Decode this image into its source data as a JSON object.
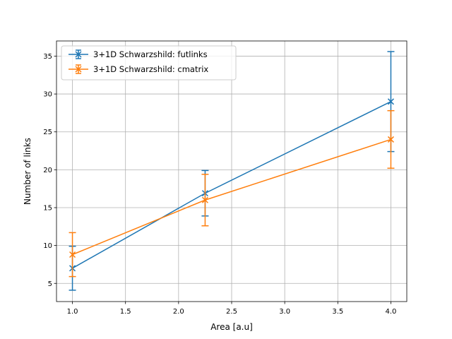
{
  "chart_data": {
    "type": "line",
    "title": "",
    "xlabel": "Area [a.u]",
    "ylabel": "Number of links",
    "xlim": [
      0.85,
      4.15
    ],
    "ylim": [
      2.6,
      37.0
    ],
    "xticks": [
      1.0,
      1.5,
      2.0,
      2.5,
      3.0,
      3.5,
      4.0
    ],
    "xtick_labels": [
      "1.0",
      "1.5",
      "2.0",
      "2.5",
      "3.0",
      "3.5",
      "4.0"
    ],
    "yticks": [
      5,
      10,
      15,
      20,
      25,
      30,
      35
    ],
    "ytick_labels": [
      "5",
      "10",
      "15",
      "20",
      "25",
      "30",
      "35"
    ],
    "grid": true,
    "legend_position": "upper-left",
    "series": [
      {
        "name": "3+1D Schwarzshild: futlinks",
        "color": "#1f77b4",
        "marker": "x",
        "x": [
          1.0,
          2.25,
          4.0
        ],
        "y": [
          7.0,
          16.9,
          29.0
        ],
        "err_low": [
          4.1,
          13.9,
          22.4
        ],
        "err_high": [
          9.9,
          19.9,
          35.6
        ]
      },
      {
        "name": "3+1D Schwarzshild: cmatrix",
        "color": "#ff7f0e",
        "marker": "x",
        "x": [
          1.0,
          2.25,
          4.0
        ],
        "y": [
          8.8,
          16.0,
          24.0
        ],
        "err_low": [
          5.9,
          12.6,
          20.2
        ],
        "err_high": [
          11.7,
          19.4,
          27.8
        ]
      }
    ]
  }
}
